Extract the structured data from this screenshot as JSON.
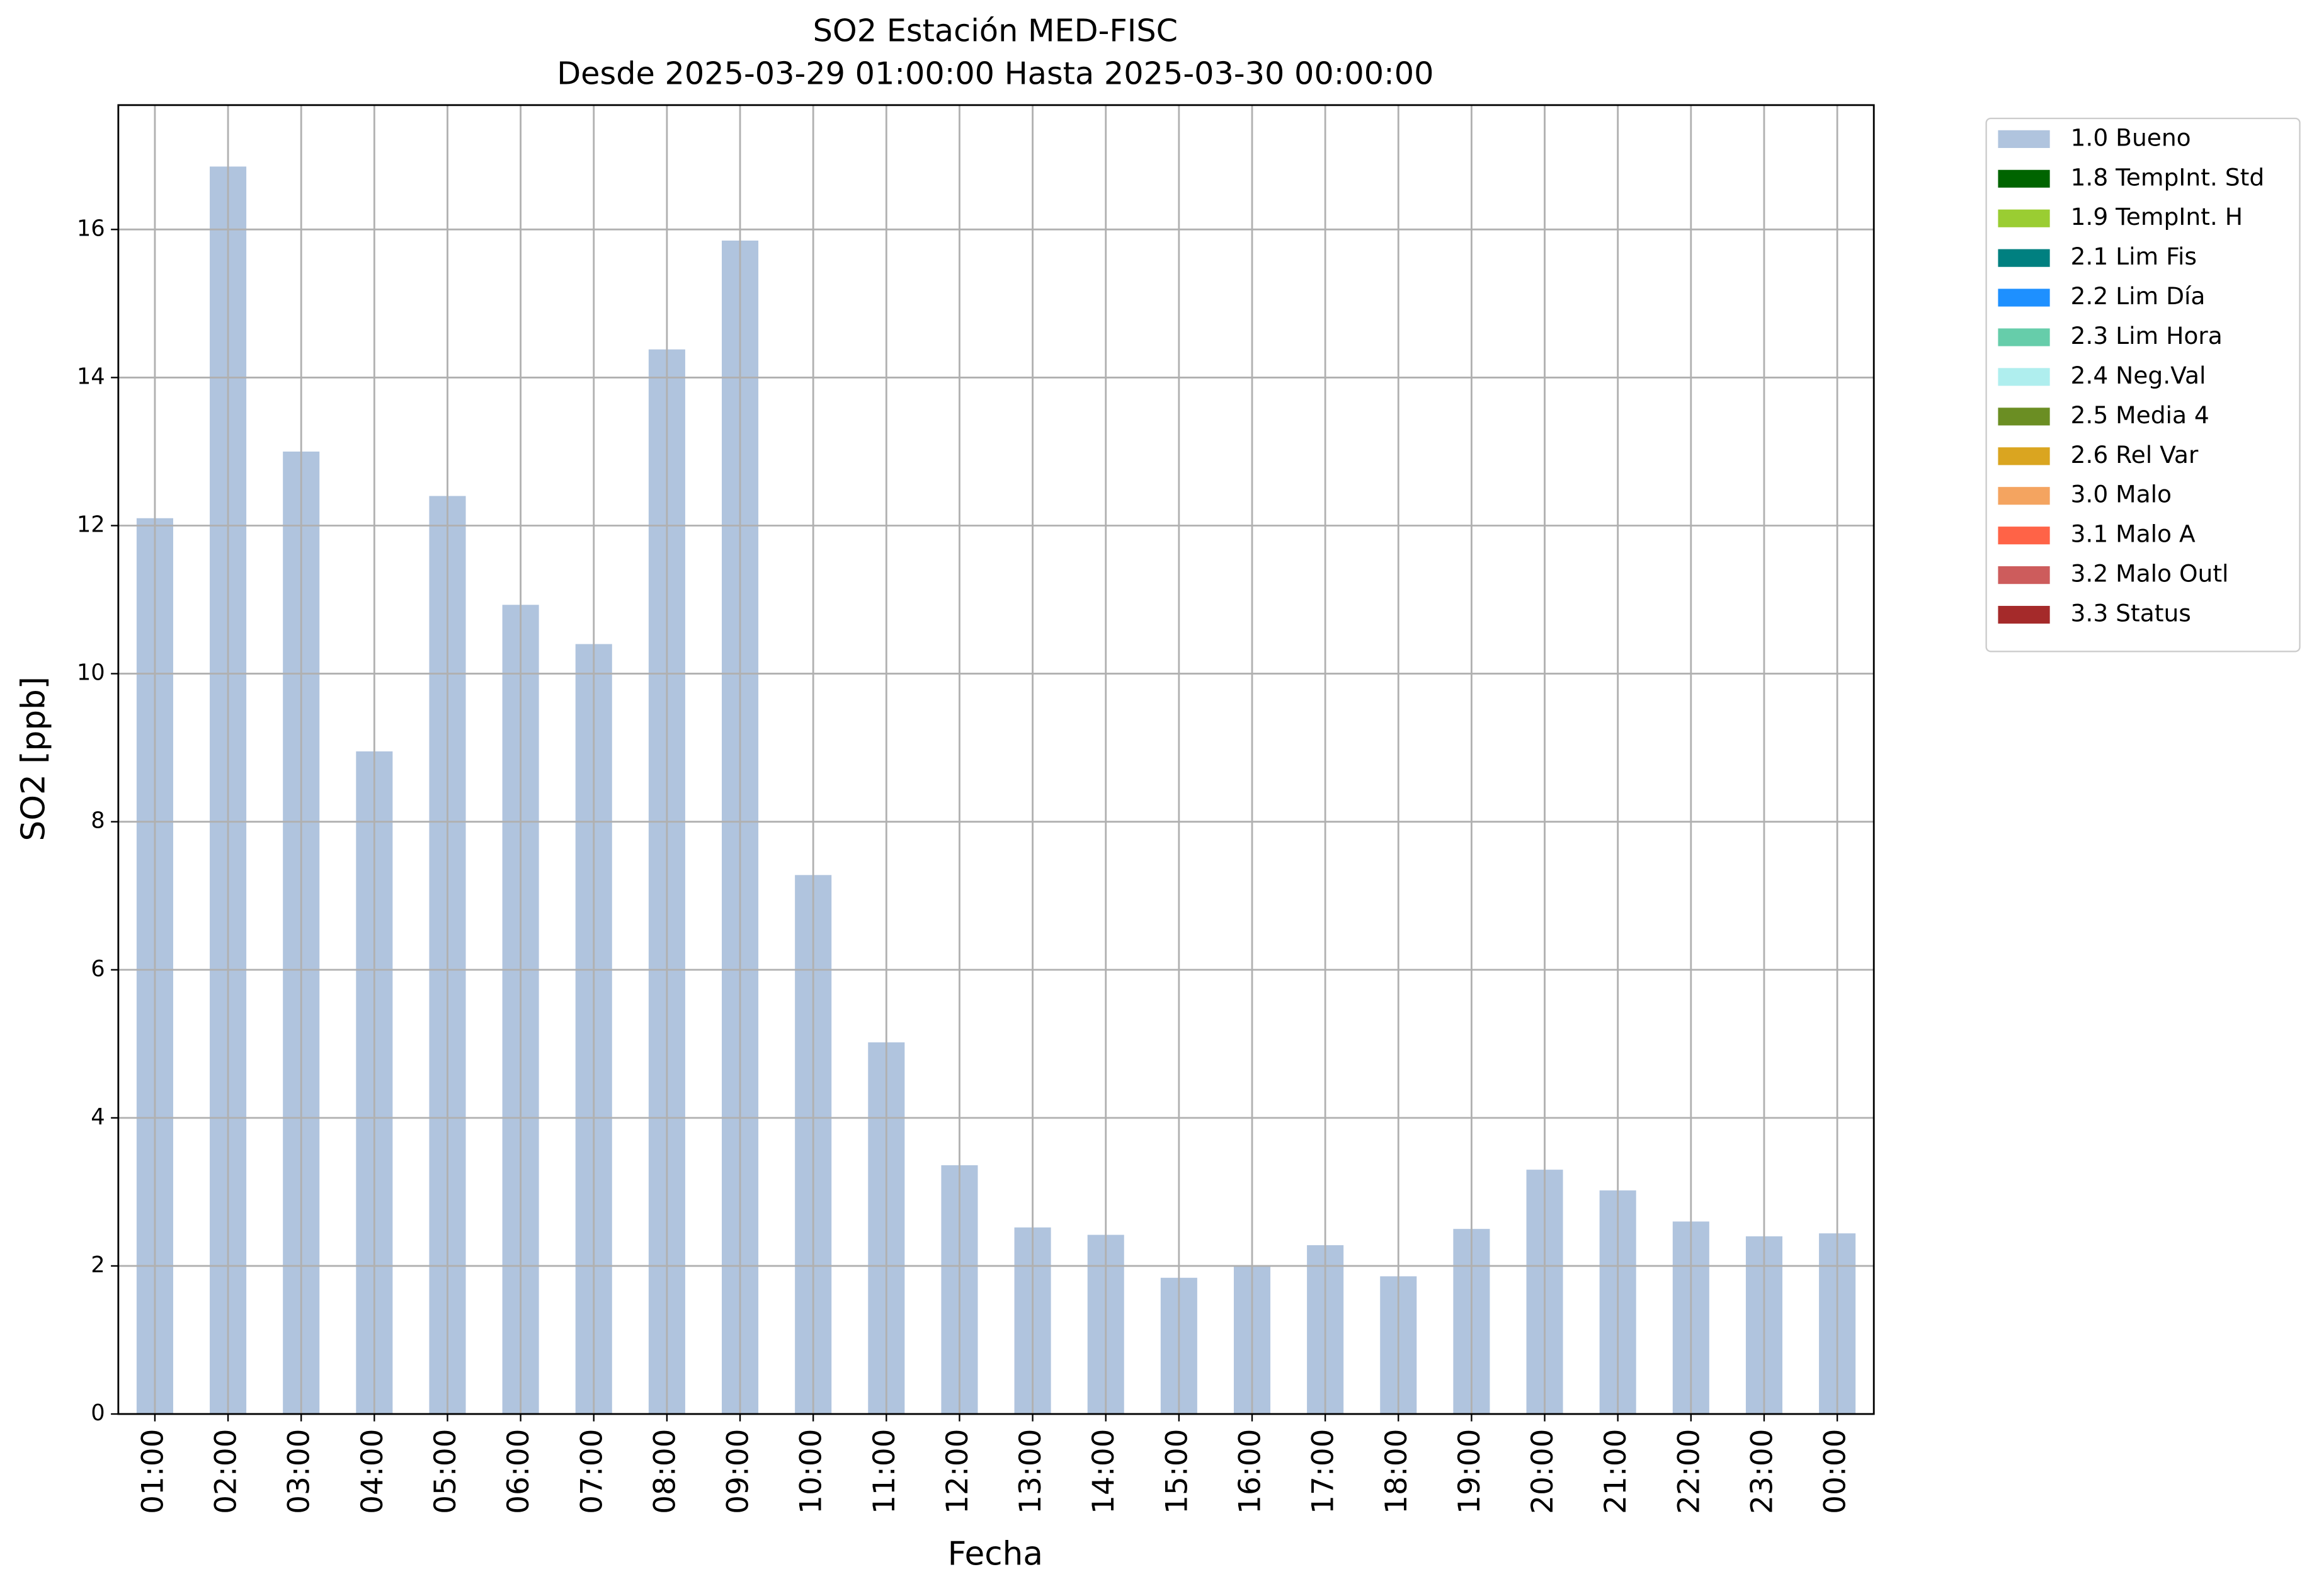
{
  "chart_data": {
    "type": "bar",
    "title": "SO2 Estación MED-FISC",
    "subtitle": "Desde 2025-03-29 01:00:00 Hasta 2025-03-30 00:00:00",
    "x_label": "Fecha",
    "y_label": "SO2 [ppb]",
    "categories": [
      "01:00",
      "02:00",
      "03:00",
      "04:00",
      "05:00",
      "06:00",
      "07:00",
      "08:00",
      "09:00",
      "10:00",
      "11:00",
      "12:00",
      "13:00",
      "14:00",
      "15:00",
      "16:00",
      "17:00",
      "18:00",
      "19:00",
      "20:00",
      "21:00",
      "22:00",
      "23:00",
      "00:00"
    ],
    "series": [
      {
        "name": "1.0 Bueno",
        "color": "#b0c4de",
        "values": [
          12.1,
          16.85,
          13.0,
          8.95,
          12.4,
          10.93,
          10.4,
          14.38,
          15.85,
          7.28,
          5.02,
          3.36,
          2.52,
          2.42,
          1.84,
          2.0,
          2.28,
          1.86,
          2.5,
          3.3,
          3.02,
          2.6,
          2.4,
          2.44
        ]
      }
    ],
    "other_legend_entries": [
      {
        "name": "1.8 TempInt. Std",
        "color": "#006400"
      },
      {
        "name": "1.9 TempInt. H",
        "color": "#9acd32"
      },
      {
        "name": "2.1 Lim Fis",
        "color": "#008080"
      },
      {
        "name": "2.2 Lim Día",
        "color": "#1e90ff"
      },
      {
        "name": "2.3 Lim Hora",
        "color": "#66cdaa"
      },
      {
        "name": "2.4 Neg.Val",
        "color": "#afeeee"
      },
      {
        "name": "2.5 Media 4",
        "color": "#6b8e23"
      },
      {
        "name": "2.6 Rel Var",
        "color": "#daa520"
      },
      {
        "name": "3.0 Malo",
        "color": "#f4a460"
      },
      {
        "name": "3.1 Malo A",
        "color": "#ff6347"
      },
      {
        "name": "3.2 Malo Outl",
        "color": "#cd5c5c"
      },
      {
        "name": "3.3 Status",
        "color": "#a52a2a"
      }
    ],
    "ylim": [
      0,
      17.68
    ],
    "yticks": [
      0,
      2,
      4,
      6,
      8,
      10,
      12,
      14,
      16
    ],
    "grid": true,
    "legend": "outside-upper-right"
  }
}
